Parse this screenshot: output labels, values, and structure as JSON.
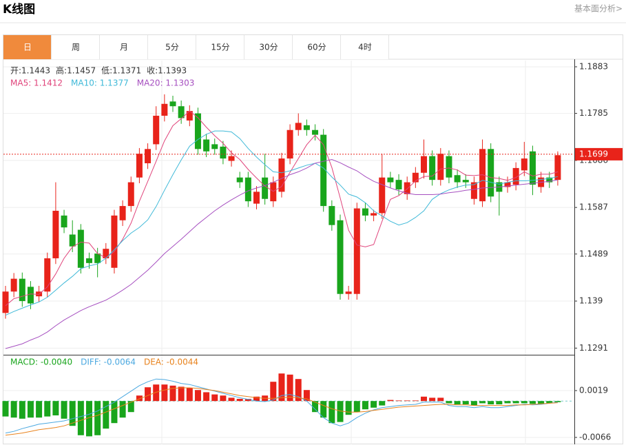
{
  "page": {
    "title": "K线图",
    "link": "基本面分析>",
    "tabs": [
      "日",
      "周",
      "月",
      "5分",
      "15分",
      "30分",
      "60分",
      "4时"
    ],
    "active_tab": 0
  },
  "chart_data": [
    {
      "type": "candlestick",
      "info": [
        "开:1.1443",
        "高:1.1457",
        "低:1.1371",
        "收:1.1393"
      ],
      "up_color": "#e8231a",
      "down_color": "#19a51c",
      "open": [
        1.1365,
        1.141,
        1.1437,
        1.142,
        1.14,
        1.141,
        1.148,
        1.157,
        1.153,
        1.154,
        1.148,
        1.149,
        1.148,
        1.146,
        1.156,
        1.159,
        1.165,
        1.168,
        1.172,
        1.178,
        1.181,
        1.18,
        1.177,
        1.1785,
        1.173,
        1.172,
        1.1715,
        1.1685,
        1.165,
        1.165,
        1.1595,
        1.165,
        1.16,
        1.162,
        1.169,
        1.175,
        1.176,
        1.175,
        1.174,
        1.159,
        1.156,
        1.1405,
        1.1405,
        1.1585,
        1.157,
        1.1575,
        1.165,
        1.1645,
        1.1615,
        1.164,
        1.166,
        1.1695,
        1.1645,
        1.1695,
        1.1655,
        1.1645,
        1.1605,
        1.16,
        1.171,
        1.164,
        1.163,
        1.1635,
        1.1665,
        1.1705,
        1.163,
        1.165,
        1.1645
      ],
      "high": [
        1.1422,
        1.1449,
        1.145,
        1.1432,
        1.1422,
        1.1492,
        1.164,
        1.1582,
        1.156,
        1.1552,
        1.1492,
        1.1502,
        1.1512,
        1.1582,
        1.1602,
        1.1652,
        1.1712,
        1.1722,
        1.18,
        1.1825,
        1.1822,
        1.1812,
        1.1802,
        1.1797,
        1.1742,
        1.1732,
        1.1727,
        1.1707,
        1.1662,
        1.1662,
        1.1632,
        1.17,
        1.1652,
        1.1702,
        1.1762,
        1.1785,
        1.1772,
        1.1762,
        1.1752,
        1.1602,
        1.1572,
        1.1422,
        1.1597,
        1.1597,
        1.1582,
        1.17,
        1.1662,
        1.1657,
        1.1652,
        1.1672,
        1.173,
        1.1707,
        1.1712,
        1.1707,
        1.1667,
        1.1657,
        1.1652,
        1.173,
        1.1722,
        1.1652,
        1.1652,
        1.1682,
        1.1725,
        1.1717,
        1.1662,
        1.1662,
        1.1705
      ],
      "low": [
        1.1353,
        1.1398,
        1.1378,
        1.1373,
        1.1388,
        1.1398,
        1.1468,
        1.1533,
        1.1493,
        1.1448,
        1.1458,
        1.144,
        1.1468,
        1.1448,
        1.1548,
        1.1578,
        1.1638,
        1.1668,
        1.1708,
        1.1768,
        1.1788,
        1.1763,
        1.1758,
        1.1698,
        1.1693,
        1.1698,
        1.1678,
        1.1673,
        1.1628,
        1.1588,
        1.1583,
        1.1593,
        1.1588,
        1.1608,
        1.1678,
        1.1738,
        1.1738,
        1.1728,
        1.1578,
        1.1538,
        1.1393,
        1.1393,
        1.1393,
        1.1558,
        1.1558,
        1.1563,
        1.1628,
        1.1613,
        1.1603,
        1.1628,
        1.1648,
        1.1633,
        1.1633,
        1.1638,
        1.1628,
        1.1628,
        1.1593,
        1.1588,
        1.1598,
        1.157,
        1.1618,
        1.1623,
        1.1653,
        1.1613,
        1.1618,
        1.1628,
        1.1633
      ],
      "close": [
        1.141,
        1.1437,
        1.139,
        1.1385,
        1.141,
        1.148,
        1.158,
        1.1545,
        1.1505,
        1.146,
        1.147,
        1.147,
        1.15,
        1.157,
        1.159,
        1.164,
        1.17,
        1.171,
        1.178,
        1.1805,
        1.18,
        1.1775,
        1.179,
        1.171,
        1.1705,
        1.171,
        1.169,
        1.1695,
        1.164,
        1.16,
        1.162,
        1.1605,
        1.164,
        1.169,
        1.175,
        1.1765,
        1.175,
        1.174,
        1.159,
        1.155,
        1.1405,
        1.141,
        1.1585,
        1.157,
        1.1575,
        1.165,
        1.164,
        1.1625,
        1.164,
        1.166,
        1.1695,
        1.1645,
        1.17,
        1.165,
        1.164,
        1.164,
        1.164,
        1.171,
        1.161,
        1.162,
        1.164,
        1.167,
        1.169,
        1.1635,
        1.165,
        1.164,
        1.1697
      ],
      "series": [
        {
          "name": "MA5: 1.1412",
          "color": "#e0447b",
          "values": [
            1.138,
            1.1395,
            1.14,
            1.1405,
            1.1404,
            1.142,
            1.1447,
            1.148,
            1.1504,
            1.1514,
            1.1512,
            1.149,
            1.1481,
            1.1494,
            1.152,
            1.1554,
            1.16,
            1.1642,
            1.1684,
            1.1727,
            1.1759,
            1.1774,
            1.179,
            1.1776,
            1.1756,
            1.1738,
            1.1722,
            1.1702,
            1.1688,
            1.1667,
            1.1649,
            1.1632,
            1.1621,
            1.1631,
            1.1661,
            1.169,
            1.1719,
            1.1739,
            1.1719,
            1.1671,
            1.1607,
            1.1539,
            1.1508,
            1.1504,
            1.1509,
            1.1558,
            1.1604,
            1.1612,
            1.1626,
            1.1643,
            1.1652,
            1.1653,
            1.1668,
            1.167,
            1.1666,
            1.1655,
            1.1654,
            1.1656,
            1.165,
            1.1648,
            1.1644,
            1.165,
            1.1662,
            1.1653,
            1.1657,
            1.1657,
            1.1662
          ]
        },
        {
          "name": "MA10: 1.1377",
          "color": "#3fb9d8",
          "values": [
            1.136,
            1.1368,
            1.1375,
            1.1382,
            1.1388,
            1.1398,
            1.1413,
            1.1428,
            1.1442,
            1.1458,
            1.1464,
            1.1468,
            1.148,
            1.1498,
            1.1517,
            1.1533,
            1.1545,
            1.1561,
            1.1589,
            1.1623,
            1.1656,
            1.1687,
            1.1716,
            1.173,
            1.1741,
            1.1748,
            1.1748,
            1.1746,
            1.1732,
            1.1711,
            1.1693,
            1.1677,
            1.1662,
            1.166,
            1.1664,
            1.167,
            1.1676,
            1.168,
            1.167,
            1.1651,
            1.1634,
            1.1615,
            1.1609,
            1.1597,
            1.158,
            1.1569,
            1.1558,
            1.155,
            1.1555,
            1.1566,
            1.158,
            1.1604,
            1.1616,
            1.1624,
            1.163,
            1.1634,
            1.1635,
            1.1644,
            1.164,
            1.1636,
            1.164,
            1.1643,
            1.1643,
            1.1644,
            1.1646,
            1.1648,
            1.1652
          ]
        },
        {
          "name": "MA20: 1.1303",
          "color": "#a64fc0",
          "values": [
            1.129,
            1.1295,
            1.13,
            1.1308,
            1.1315,
            1.1325,
            1.1338,
            1.135,
            1.136,
            1.137,
            1.1378,
            1.1385,
            1.1392,
            1.1402,
            1.1413,
            1.1425,
            1.144,
            1.1455,
            1.1472,
            1.149,
            1.1505,
            1.152,
            1.1536,
            1.1552,
            1.1566,
            1.158,
            1.1592,
            1.1603,
            1.1613,
            1.1622,
            1.1628,
            1.1633,
            1.164,
            1.1648,
            1.1656,
            1.1662,
            1.167,
            1.168,
            1.1684,
            1.1688,
            1.1681,
            1.1672,
            1.1664,
            1.1652,
            1.1642,
            1.1635,
            1.1628,
            1.1622,
            1.1617,
            1.1614,
            1.1614,
            1.1614,
            1.1615,
            1.1618,
            1.162,
            1.1623,
            1.1625,
            1.1628,
            1.1629,
            1.163,
            1.1632,
            1.1634,
            1.1636,
            1.1638,
            1.164,
            1.1642,
            1.1645
          ]
        }
      ],
      "last_price": 1.1699,
      "ylim": [
        1.1277,
        1.1896
      ],
      "yticks": [
        1.1883,
        1.1785,
        1.1686,
        1.1587,
        1.1489,
        1.139,
        1.1291
      ]
    },
    {
      "type": "macd",
      "name": "MACD: -0.0040",
      "up_color": "#e8231a",
      "down_color": "#19a51c",
      "values": [
        -0.0028,
        -0.003,
        -0.0032,
        -0.003,
        -0.003,
        -0.0028,
        -0.0026,
        -0.0032,
        -0.0045,
        -0.0062,
        -0.0064,
        -0.0062,
        -0.005,
        -0.004,
        -0.003,
        -0.002,
        0.001,
        0.0025,
        0.003,
        0.003,
        0.0028,
        0.0026,
        0.0024,
        0.002,
        0.0016,
        0.0012,
        0.001,
        0.0006,
        0.0004,
        0.0004,
        0.0008,
        0.001,
        0.0035,
        0.005,
        0.0048,
        0.004,
        0.002,
        -0.002,
        -0.003,
        -0.004,
        -0.0038,
        -0.0025,
        -0.002,
        -0.0015,
        -0.0012,
        -0.0008,
        0.0002,
        0.0001,
        0.0001,
        0.0001,
        0.0008,
        0.0006,
        0.0006,
        -0.0004,
        -0.0006,
        -0.0006,
        -0.0008,
        -0.0004,
        -0.0006,
        -0.0006,
        -0.0004,
        -0.0004,
        -0.0004,
        -0.0005,
        -0.0005,
        -0.0004,
        -0.0002
      ],
      "series": [
        {
          "name": "DIFF: -0.0064",
          "color": "#4aa8e0",
          "values": [
            -0.0058,
            -0.0055,
            -0.005,
            -0.0046,
            -0.0042,
            -0.004,
            -0.0038,
            -0.0036,
            -0.0032,
            -0.0028,
            -0.0024,
            -0.0018,
            -0.001,
            -0.0002,
            0.0008,
            0.0018,
            0.0028,
            0.0035,
            0.004,
            0.0039,
            0.0036,
            0.0032,
            0.003,
            0.0026,
            0.0022,
            0.0018,
            0.0014,
            0.001,
            0.0006,
            0.0003,
            0.0,
            -0.0001,
            0.0002,
            0.001,
            0.0012,
            0.0008,
            0.0,
            -0.0015,
            -0.003,
            -0.004,
            -0.0045,
            -0.004,
            -0.003,
            -0.0022,
            -0.0016,
            -0.0012,
            -0.001,
            -0.0008,
            -0.0007,
            -0.0006,
            -0.0002,
            -0.0002,
            -0.0002,
            -0.0008,
            -0.001,
            -0.001,
            -0.0012,
            -0.001,
            -0.0012,
            -0.0012,
            -0.001,
            -0.0008,
            -0.0006,
            -0.0007,
            -0.0006,
            -0.0004,
            -0.0002
          ]
        },
        {
          "name": "DEA: -0.0044",
          "color": "#e8821c",
          "values": [
            -0.0062,
            -0.006,
            -0.0058,
            -0.0055,
            -0.0052,
            -0.005,
            -0.0048,
            -0.0045,
            -0.004,
            -0.0035,
            -0.003,
            -0.0026,
            -0.002,
            -0.0014,
            -0.0008,
            -0.0002,
            0.0004,
            0.001,
            0.0016,
            0.002,
            0.0023,
            0.0024,
            0.0024,
            0.0023,
            0.0021,
            0.0019,
            0.0016,
            0.0013,
            0.001,
            0.0008,
            0.0006,
            0.0005,
            0.0005,
            0.0006,
            0.0007,
            0.0006,
            0.0004,
            -0.0002,
            -0.0008,
            -0.0014,
            -0.0018,
            -0.002,
            -0.002,
            -0.0019,
            -0.0017,
            -0.0015,
            -0.0013,
            -0.0011,
            -0.001,
            -0.0009,
            -0.0008,
            -0.0007,
            -0.0006,
            -0.0006,
            -0.0007,
            -0.0007,
            -0.0008,
            -0.0008,
            -0.0008,
            -0.0008,
            -0.0008,
            -0.0007,
            -0.0007,
            -0.0006,
            -0.0005,
            -0.0004,
            -0.0003
          ]
        }
      ],
      "ylim": [
        -0.00785,
        0.00815
      ],
      "yticks": [
        0.0019,
        -0.0066
      ]
    }
  ]
}
